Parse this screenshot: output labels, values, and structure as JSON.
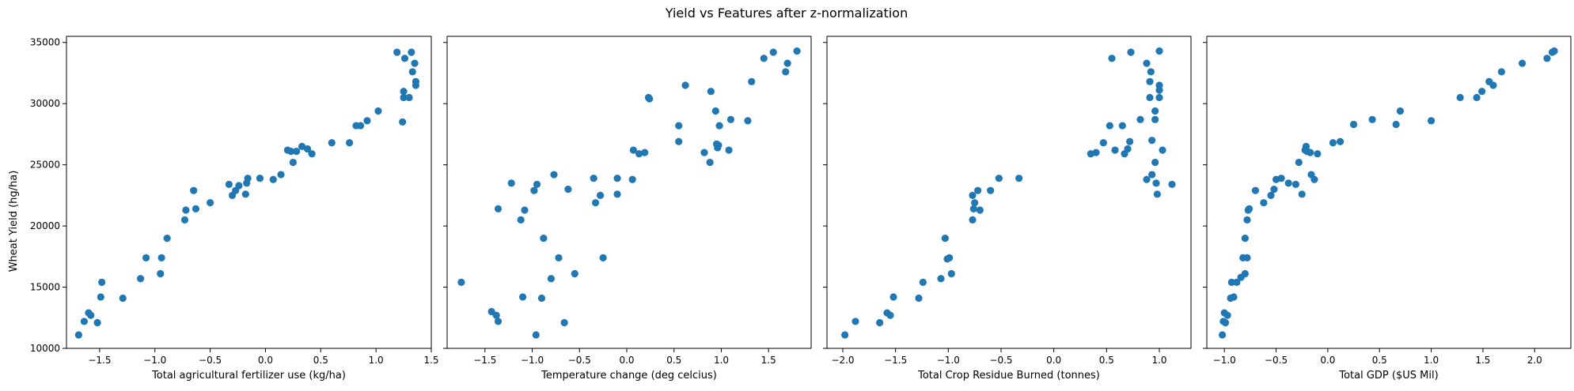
{
  "suptitle": "Yield vs Features after z-normalization",
  "shared_ylabel": "Wheat Yield (hg/ha)",
  "colors": {
    "point": "#1f77b4",
    "axis": "#000000"
  },
  "chart_data": [
    {
      "type": "scatter",
      "xlabel": "Total agricultural fertilizer use (kg/ha)",
      "ylabel": "Wheat Yield (hg/ha)",
      "xlim": [
        -1.8,
        1.5
      ],
      "ylim": [
        10000,
        35500
      ],
      "xticks": [
        "-1.5",
        "-1.0",
        "-0.5",
        "0.0",
        "0.5",
        "1.0",
        "1.5"
      ],
      "yticks": [
        "10000",
        "15000",
        "20000",
        "25000",
        "30000",
        "35000"
      ],
      "points": [
        [
          -1.69,
          11100
        ],
        [
          -1.64,
          12200
        ],
        [
          -1.6,
          12900
        ],
        [
          -1.58,
          12700
        ],
        [
          -1.52,
          12100
        ],
        [
          -1.49,
          14200
        ],
        [
          -1.48,
          15400
        ],
        [
          -1.29,
          14100
        ],
        [
          -1.13,
          15700
        ],
        [
          -1.08,
          17400
        ],
        [
          -0.95,
          16100
        ],
        [
          -0.94,
          17400
        ],
        [
          -0.89,
          19000
        ],
        [
          -0.73,
          20500
        ],
        [
          -0.72,
          21300
        ],
        [
          -0.65,
          22900
        ],
        [
          -0.63,
          21400
        ],
        [
          -0.5,
          21900
        ],
        [
          -0.33,
          23400
        ],
        [
          -0.3,
          22500
        ],
        [
          -0.27,
          22900
        ],
        [
          -0.24,
          23300
        ],
        [
          -0.18,
          22600
        ],
        [
          -0.17,
          23500
        ],
        [
          -0.16,
          23900
        ],
        [
          -0.05,
          23900
        ],
        [
          0.07,
          23800
        ],
        [
          0.14,
          24200
        ],
        [
          0.2,
          26200
        ],
        [
          0.23,
          26100
        ],
        [
          0.25,
          25200
        ],
        [
          0.28,
          26100
        ],
        [
          0.33,
          26500
        ],
        [
          0.38,
          26300
        ],
        [
          0.42,
          25900
        ],
        [
          0.6,
          26800
        ],
        [
          0.76,
          26800
        ],
        [
          0.82,
          28200
        ],
        [
          0.86,
          28200
        ],
        [
          0.92,
          28600
        ],
        [
          1.02,
          29400
        ],
        [
          1.19,
          34200
        ],
        [
          1.24,
          28500
        ],
        [
          1.25,
          30500
        ],
        [
          1.25,
          31000
        ],
        [
          1.26,
          33700
        ],
        [
          1.3,
          30500
        ],
        [
          1.32,
          34200
        ],
        [
          1.33,
          32600
        ],
        [
          1.35,
          33300
        ],
        [
          1.36,
          31800
        ],
        [
          1.36,
          31500
        ]
      ]
    },
    {
      "type": "scatter",
      "xlabel": "Temperature change (deg celcius)",
      "ylabel": "",
      "xlim": [
        -1.9,
        1.95
      ],
      "ylim": [
        10000,
        35500
      ],
      "xticks": [
        "-1.5",
        "-1.0",
        "-0.5",
        "0.0",
        "0.5",
        "1.0",
        "1.5"
      ],
      "yticks": [],
      "points": [
        [
          -1.75,
          15400
        ],
        [
          -1.43,
          13000
        ],
        [
          -1.38,
          12700
        ],
        [
          -1.36,
          12200
        ],
        [
          -1.36,
          21400
        ],
        [
          -1.22,
          23500
        ],
        [
          -1.12,
          20500
        ],
        [
          -1.08,
          21300
        ],
        [
          -1.1,
          14200
        ],
        [
          -0.98,
          22900
        ],
        [
          -0.95,
          23400
        ],
        [
          -0.96,
          11100
        ],
        [
          -0.9,
          14100
        ],
        [
          -0.88,
          19000
        ],
        [
          -0.8,
          15700
        ],
        [
          -0.77,
          24200
        ],
        [
          -0.72,
          17400
        ],
        [
          -0.66,
          12100
        ],
        [
          -0.62,
          23000
        ],
        [
          -0.55,
          16100
        ],
        [
          -0.35,
          23900
        ],
        [
          -0.33,
          21900
        ],
        [
          -0.28,
          22500
        ],
        [
          -0.25,
          17400
        ],
        [
          -0.1,
          23900
        ],
        [
          -0.1,
          22600
        ],
        [
          0.07,
          26200
        ],
        [
          0.06,
          23800
        ],
        [
          0.13,
          25900
        ],
        [
          0.19,
          26000
        ],
        [
          0.23,
          30500
        ],
        [
          0.24,
          30400
        ],
        [
          0.55,
          26900
        ],
        [
          0.55,
          28200
        ],
        [
          0.62,
          31500
        ],
        [
          0.82,
          26000
        ],
        [
          0.88,
          25200
        ],
        [
          0.89,
          31000
        ],
        [
          0.94,
          29400
        ],
        [
          0.95,
          26700
        ],
        [
          0.96,
          26400
        ],
        [
          0.97,
          26600
        ],
        [
          0.98,
          28200
        ],
        [
          1.08,
          26200
        ],
        [
          1.1,
          28700
        ],
        [
          1.28,
          28600
        ],
        [
          1.32,
          31800
        ],
        [
          1.45,
          33700
        ],
        [
          1.55,
          34200
        ],
        [
          1.68,
          32600
        ],
        [
          1.7,
          33300
        ],
        [
          1.8,
          34300
        ]
      ]
    },
    {
      "type": "scatter",
      "xlabel": "Total Crop Residue Burned (tonnes)",
      "ylabel": "",
      "xlim": [
        -2.15,
        1.3
      ],
      "ylim": [
        10000,
        35500
      ],
      "xticks": [
        "-2.0",
        "-1.5",
        "-1.0",
        "-0.5",
        "0.0",
        "0.5",
        "1.0"
      ],
      "yticks": [],
      "points": [
        [
          -1.98,
          11100
        ],
        [
          -1.88,
          12200
        ],
        [
          -1.65,
          12100
        ],
        [
          -1.58,
          12900
        ],
        [
          -1.55,
          12700
        ],
        [
          -1.52,
          14200
        ],
        [
          -1.28,
          14100
        ],
        [
          -1.24,
          15400
        ],
        [
          -1.07,
          15700
        ],
        [
          -0.99,
          17400
        ],
        [
          -1.01,
          17300
        ],
        [
          -0.97,
          16100
        ],
        [
          -1.03,
          19000
        ],
        [
          -0.77,
          20500
        ],
        [
          -0.76,
          21400
        ],
        [
          -0.75,
          21900
        ],
        [
          -0.7,
          21300
        ],
        [
          -0.77,
          22500
        ],
        [
          -0.72,
          22900
        ],
        [
          -0.6,
          22900
        ],
        [
          -0.52,
          23900
        ],
        [
          -0.33,
          23900
        ],
        [
          0.35,
          25900
        ],
        [
          0.4,
          26000
        ],
        [
          0.47,
          26800
        ],
        [
          0.53,
          28200
        ],
        [
          0.55,
          33700
        ],
        [
          0.58,
          26200
        ],
        [
          0.65,
          28200
        ],
        [
          0.67,
          25900
        ],
        [
          0.7,
          26300
        ],
        [
          0.72,
          26900
        ],
        [
          0.73,
          34200
        ],
        [
          0.82,
          28700
        ],
        [
          0.88,
          33300
        ],
        [
          0.88,
          23800
        ],
        [
          0.91,
          30500
        ],
        [
          0.91,
          31800
        ],
        [
          0.92,
          32600
        ],
        [
          0.93,
          24200
        ],
        [
          0.96,
          28700
        ],
        [
          0.96,
          29400
        ],
        [
          0.96,
          25200
        ],
        [
          0.97,
          23500
        ],
        [
          0.98,
          22600
        ],
        [
          1.0,
          34300
        ],
        [
          1.0,
          30500
        ],
        [
          1.0,
          31500
        ],
        [
          1.0,
          31100
        ],
        [
          1.03,
          26200
        ],
        [
          1.12,
          23400
        ],
        [
          0.93,
          27000
        ]
      ]
    },
    {
      "type": "scatter",
      "xlabel": "Total GDP ($US Mil)",
      "ylabel": "",
      "xlim": [
        -1.17,
        2.35
      ],
      "ylim": [
        10000,
        35500
      ],
      "xticks": [
        "-1.0",
        "-0.5",
        "0.0",
        "0.5",
        "1.0",
        "1.5",
        "2.0"
      ],
      "yticks": [],
      "points": [
        [
          -1.02,
          11100
        ],
        [
          -1.01,
          12200
        ],
        [
          -0.99,
          12100
        ],
        [
          -1.0,
          12900
        ],
        [
          -0.97,
          12700
        ],
        [
          -0.94,
          14100
        ],
        [
          -0.91,
          14200
        ],
        [
          -0.93,
          15400
        ],
        [
          -0.88,
          15400
        ],
        [
          -0.84,
          15800
        ],
        [
          -0.8,
          16100
        ],
        [
          -0.82,
          17400
        ],
        [
          -0.78,
          17400
        ],
        [
          -0.8,
          19000
        ],
        [
          -0.78,
          20500
        ],
        [
          -0.77,
          21300
        ],
        [
          -0.76,
          21400
        ],
        [
          -0.7,
          22900
        ],
        [
          -0.62,
          21900
        ],
        [
          -0.55,
          22500
        ],
        [
          -0.52,
          23000
        ],
        [
          -0.5,
          23800
        ],
        [
          -0.45,
          23900
        ],
        [
          -0.38,
          23500
        ],
        [
          -0.31,
          23400
        ],
        [
          -0.28,
          25200
        ],
        [
          -0.25,
          22600
        ],
        [
          -0.22,
          26200
        ],
        [
          -0.21,
          26500
        ],
        [
          -0.2,
          26100
        ],
        [
          -0.17,
          26000
        ],
        [
          -0.16,
          24200
        ],
        [
          -0.13,
          23800
        ],
        [
          -0.1,
          25900
        ],
        [
          0.05,
          26800
        ],
        [
          0.12,
          26900
        ],
        [
          0.25,
          28300
        ],
        [
          0.43,
          28700
        ],
        [
          0.66,
          28300
        ],
        [
          0.7,
          29400
        ],
        [
          1.0,
          28600
        ],
        [
          1.28,
          30500
        ],
        [
          1.44,
          30500
        ],
        [
          1.49,
          31000
        ],
        [
          1.56,
          31800
        ],
        [
          1.6,
          31500
        ],
        [
          1.68,
          32600
        ],
        [
          1.88,
          33300
        ],
        [
          2.12,
          33700
        ],
        [
          2.17,
          34200
        ],
        [
          2.19,
          34300
        ]
      ]
    }
  ]
}
